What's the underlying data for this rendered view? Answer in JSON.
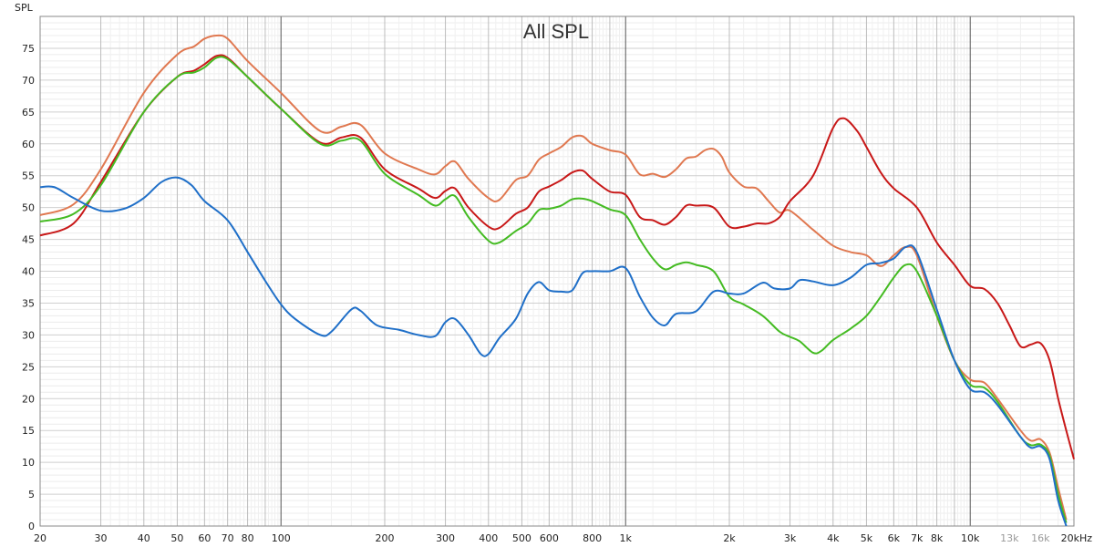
{
  "chart_data": {
    "type": "line",
    "title": "All SPL",
    "ylabel": "SPL",
    "xlabel": "",
    "x_scale": "log",
    "xlim": [
      20,
      20000
    ],
    "ylim": [
      0,
      80
    ],
    "grid": true,
    "legend": "none",
    "y_ticks": [
      0,
      5,
      10,
      15,
      20,
      25,
      30,
      35,
      40,
      45,
      50,
      55,
      60,
      65,
      70,
      75
    ],
    "x_ticks": [
      {
        "value": 20,
        "label": "20"
      },
      {
        "value": 30,
        "label": "30"
      },
      {
        "value": 40,
        "label": "40"
      },
      {
        "value": 50,
        "label": "50"
      },
      {
        "value": 60,
        "label": "60"
      },
      {
        "value": 70,
        "label": "70"
      },
      {
        "value": 80,
        "label": "80"
      },
      {
        "value": 100,
        "label": "100"
      },
      {
        "value": 200,
        "label": "200"
      },
      {
        "value": 300,
        "label": "300"
      },
      {
        "value": 400,
        "label": "400"
      },
      {
        "value": 500,
        "label": "500"
      },
      {
        "value": 600,
        "label": "600"
      },
      {
        "value": 800,
        "label": "800"
      },
      {
        "value": 1000,
        "label": "1k"
      },
      {
        "value": 2000,
        "label": "2k"
      },
      {
        "value": 3000,
        "label": "3k"
      },
      {
        "value": 4000,
        "label": "4k"
      },
      {
        "value": 5000,
        "label": "5k"
      },
      {
        "value": 6000,
        "label": "6k"
      },
      {
        "value": 7000,
        "label": "7k"
      },
      {
        "value": 8000,
        "label": "8k"
      },
      {
        "value": 10000,
        "label": "10k"
      },
      {
        "value": 13000,
        "label": "13k",
        "muted": true
      },
      {
        "value": 16000,
        "label": "16k",
        "muted": true
      },
      {
        "value": 20000,
        "label": "20kHz"
      }
    ],
    "series": [
      {
        "color": "#e07850",
        "points": [
          [
            20,
            48.8
          ],
          [
            25,
            50.5
          ],
          [
            30,
            56
          ],
          [
            40,
            68
          ],
          [
            50,
            74
          ],
          [
            56,
            75.3
          ],
          [
            60,
            76.5
          ],
          [
            65,
            77
          ],
          [
            70,
            76.5
          ],
          [
            80,
            73
          ],
          [
            100,
            68
          ],
          [
            130,
            62
          ],
          [
            150,
            62.7
          ],
          [
            170,
            63
          ],
          [
            200,
            58.5
          ],
          [
            250,
            56
          ],
          [
            280,
            55.2
          ],
          [
            300,
            56.5
          ],
          [
            320,
            57.2
          ],
          [
            350,
            54.5
          ],
          [
            400,
            51.5
          ],
          [
            430,
            51.2
          ],
          [
            480,
            54.3
          ],
          [
            520,
            55
          ],
          [
            560,
            57.5
          ],
          [
            600,
            58.5
          ],
          [
            650,
            59.5
          ],
          [
            700,
            61
          ],
          [
            750,
            61.2
          ],
          [
            800,
            60
          ],
          [
            900,
            59
          ],
          [
            1000,
            58.3
          ],
          [
            1100,
            55.2
          ],
          [
            1200,
            55.3
          ],
          [
            1300,
            54.8
          ],
          [
            1400,
            56
          ],
          [
            1500,
            57.7
          ],
          [
            1600,
            58
          ],
          [
            1700,
            59
          ],
          [
            1800,
            59.2
          ],
          [
            1900,
            58
          ],
          [
            2000,
            55.5
          ],
          [
            2200,
            53.3
          ],
          [
            2400,
            53
          ],
          [
            2600,
            51
          ],
          [
            2800,
            49.2
          ],
          [
            3000,
            49.5
          ],
          [
            3500,
            46.5
          ],
          [
            4000,
            44
          ],
          [
            4500,
            43
          ],
          [
            5000,
            42.5
          ],
          [
            5500,
            40.8
          ],
          [
            6000,
            42.5
          ],
          [
            6500,
            43.8
          ],
          [
            7000,
            42.5
          ],
          [
            8000,
            33
          ],
          [
            9000,
            26
          ],
          [
            10000,
            23
          ],
          [
            11000,
            22.5
          ],
          [
            12000,
            20
          ],
          [
            14000,
            15
          ],
          [
            15000,
            13.4
          ],
          [
            16000,
            13.6
          ],
          [
            17000,
            11.5
          ],
          [
            18000,
            6
          ],
          [
            19000,
            1
          ]
        ]
      },
      {
        "color": "#c81818",
        "points": [
          [
            20,
            45.6
          ],
          [
            25,
            47.5
          ],
          [
            30,
            54
          ],
          [
            40,
            65
          ],
          [
            50,
            70.5
          ],
          [
            56,
            71.5
          ],
          [
            60,
            72.5
          ],
          [
            65,
            73.8
          ],
          [
            70,
            73.5
          ],
          [
            80,
            70.5
          ],
          [
            100,
            65.5
          ],
          [
            130,
            60.2
          ],
          [
            150,
            61
          ],
          [
            170,
            61
          ],
          [
            200,
            56
          ],
          [
            250,
            53
          ],
          [
            280,
            51.5
          ],
          [
            300,
            52.6
          ],
          [
            320,
            53
          ],
          [
            350,
            50
          ],
          [
            400,
            47
          ],
          [
            430,
            46.8
          ],
          [
            480,
            49
          ],
          [
            520,
            50
          ],
          [
            560,
            52.5
          ],
          [
            600,
            53.3
          ],
          [
            650,
            54.3
          ],
          [
            700,
            55.5
          ],
          [
            750,
            55.8
          ],
          [
            800,
            54.5
          ],
          [
            900,
            52.5
          ],
          [
            1000,
            52
          ],
          [
            1100,
            48.5
          ],
          [
            1200,
            48
          ],
          [
            1300,
            47.3
          ],
          [
            1400,
            48.5
          ],
          [
            1500,
            50.3
          ],
          [
            1600,
            50.3
          ],
          [
            1800,
            50
          ],
          [
            2000,
            47
          ],
          [
            2200,
            47
          ],
          [
            2400,
            47.5
          ],
          [
            2600,
            47.5
          ],
          [
            2800,
            48.5
          ],
          [
            3000,
            51
          ],
          [
            3500,
            55
          ],
          [
            4000,
            62.5
          ],
          [
            4300,
            64
          ],
          [
            4700,
            62
          ],
          [
            5000,
            59.5
          ],
          [
            5500,
            55.5
          ],
          [
            6000,
            53
          ],
          [
            7000,
            50
          ],
          [
            8000,
            44.5
          ],
          [
            9000,
            41
          ],
          [
            10000,
            37.7
          ],
          [
            11000,
            37.2
          ],
          [
            12000,
            35
          ],
          [
            13000,
            31.5
          ],
          [
            14000,
            28.2
          ],
          [
            15000,
            28.5
          ],
          [
            16000,
            28.7
          ],
          [
            17000,
            26
          ],
          [
            18000,
            20
          ],
          [
            19000,
            15
          ],
          [
            20000,
            10.5
          ]
        ]
      },
      {
        "color": "#44bb22",
        "points": [
          [
            20,
            47.8
          ],
          [
            25,
            49
          ],
          [
            30,
            53.5
          ],
          [
            40,
            65
          ],
          [
            50,
            70.5
          ],
          [
            56,
            71.2
          ],
          [
            60,
            72
          ],
          [
            65,
            73.5
          ],
          [
            70,
            73.3
          ],
          [
            80,
            70.5
          ],
          [
            100,
            65.5
          ],
          [
            130,
            60
          ],
          [
            150,
            60.5
          ],
          [
            170,
            60.5
          ],
          [
            200,
            55.3
          ],
          [
            250,
            52
          ],
          [
            280,
            50.3
          ],
          [
            300,
            51.3
          ],
          [
            320,
            51.8
          ],
          [
            350,
            48.5
          ],
          [
            400,
            44.8
          ],
          [
            430,
            44.5
          ],
          [
            480,
            46.3
          ],
          [
            520,
            47.5
          ],
          [
            560,
            49.6
          ],
          [
            600,
            49.8
          ],
          [
            650,
            50.3
          ],
          [
            700,
            51.3
          ],
          [
            750,
            51.4
          ],
          [
            800,
            51
          ],
          [
            900,
            49.7
          ],
          [
            1000,
            48.8
          ],
          [
            1100,
            45
          ],
          [
            1200,
            42
          ],
          [
            1300,
            40.3
          ],
          [
            1400,
            41
          ],
          [
            1500,
            41.4
          ],
          [
            1600,
            41
          ],
          [
            1800,
            40
          ],
          [
            2000,
            36
          ],
          [
            2200,
            34.8
          ],
          [
            2500,
            33
          ],
          [
            2800,
            30.5
          ],
          [
            3000,
            29.7
          ],
          [
            3200,
            29
          ],
          [
            3500,
            27.2
          ],
          [
            3700,
            27.5
          ],
          [
            4000,
            29.2
          ],
          [
            4500,
            31
          ],
          [
            5000,
            33
          ],
          [
            5500,
            36
          ],
          [
            6000,
            39
          ],
          [
            6500,
            41
          ],
          [
            7000,
            40
          ],
          [
            8000,
            33
          ],
          [
            9000,
            26
          ],
          [
            10000,
            22.2
          ],
          [
            11000,
            21.7
          ],
          [
            12000,
            19.5
          ],
          [
            14000,
            14
          ],
          [
            15000,
            12.7
          ],
          [
            16000,
            12.8
          ],
          [
            17000,
            11
          ],
          [
            18000,
            5
          ],
          [
            19000,
            0.5
          ]
        ]
      },
      {
        "color": "#1f6fc8",
        "points": [
          [
            20,
            53.2
          ],
          [
            22,
            53.2
          ],
          [
            25,
            51.5
          ],
          [
            30,
            49.5
          ],
          [
            35,
            49.8
          ],
          [
            40,
            51.5
          ],
          [
            45,
            54
          ],
          [
            50,
            54.7
          ],
          [
            55,
            53.5
          ],
          [
            60,
            51
          ],
          [
            70,
            48
          ],
          [
            80,
            43
          ],
          [
            90,
            38.5
          ],
          [
            100,
            34.8
          ],
          [
            110,
            32.5
          ],
          [
            130,
            30
          ],
          [
            140,
            30.5
          ],
          [
            160,
            34
          ],
          [
            170,
            33.8
          ],
          [
            190,
            31.5
          ],
          [
            220,
            30.8
          ],
          [
            250,
            30
          ],
          [
            280,
            29.8
          ],
          [
            300,
            32
          ],
          [
            320,
            32.5
          ],
          [
            350,
            30
          ],
          [
            380,
            27
          ],
          [
            400,
            27
          ],
          [
            430,
            29.5
          ],
          [
            480,
            32.5
          ],
          [
            520,
            36.5
          ],
          [
            560,
            38.3
          ],
          [
            600,
            37
          ],
          [
            650,
            36.8
          ],
          [
            700,
            37
          ],
          [
            750,
            39.7
          ],
          [
            800,
            40
          ],
          [
            900,
            40
          ],
          [
            1000,
            40.5
          ],
          [
            1100,
            36
          ],
          [
            1200,
            32.7
          ],
          [
            1300,
            31.5
          ],
          [
            1400,
            33.3
          ],
          [
            1600,
            33.7
          ],
          [
            1800,
            36.8
          ],
          [
            2000,
            36.5
          ],
          [
            2200,
            36.5
          ],
          [
            2500,
            38.2
          ],
          [
            2700,
            37.3
          ],
          [
            3000,
            37.3
          ],
          [
            3200,
            38.6
          ],
          [
            3500,
            38.4
          ],
          [
            4000,
            37.8
          ],
          [
            4500,
            39
          ],
          [
            5000,
            41
          ],
          [
            5500,
            41.3
          ],
          [
            6000,
            42
          ],
          [
            6500,
            43.8
          ],
          [
            7000,
            43
          ],
          [
            8000,
            34
          ],
          [
            9000,
            26
          ],
          [
            10000,
            21.5
          ],
          [
            11000,
            21
          ],
          [
            12000,
            19
          ],
          [
            14000,
            14
          ],
          [
            15000,
            12.3
          ],
          [
            16000,
            12.5
          ],
          [
            17000,
            10.5
          ],
          [
            18000,
            4
          ],
          [
            19000,
            0
          ]
        ]
      }
    ]
  }
}
